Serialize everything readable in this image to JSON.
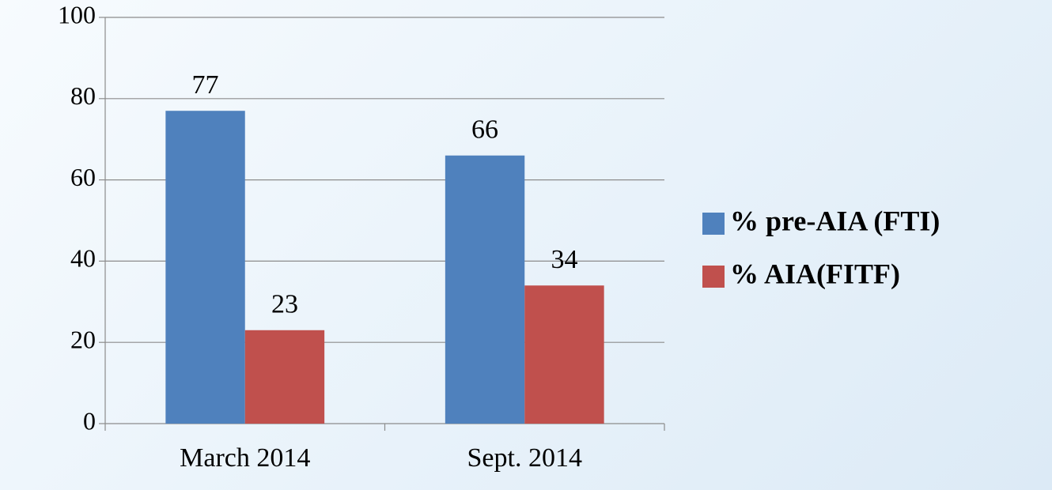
{
  "chart_data": {
    "type": "bar",
    "categories": [
      "March 2014",
      "Sept. 2014"
    ],
    "series": [
      {
        "name": "% pre-AIA (FTI)",
        "color": "#4f81bd",
        "values": [
          77,
          66
        ]
      },
      {
        "name": "% AIA(FITF)",
        "color": "#c0504d",
        "values": [
          23,
          34
        ]
      }
    ],
    "ylim": [
      0,
      100
    ],
    "yticks": [
      0,
      20,
      40,
      60,
      80,
      100
    ],
    "grid": true,
    "legend": "right"
  }
}
